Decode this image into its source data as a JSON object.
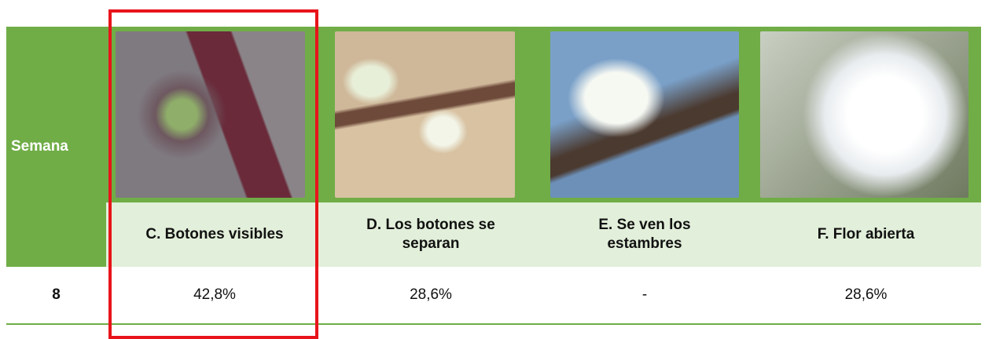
{
  "table": {
    "header": {
      "week_label": "Semana",
      "stages": [
        "C. Botones visibles",
        "D. Los botones se separan",
        "E. Se ven los estambres",
        "F. Flor abierta"
      ]
    },
    "rows": [
      [
        "8",
        "42,8%",
        "28,6%",
        "-",
        "28,6%"
      ]
    ]
  }
}
